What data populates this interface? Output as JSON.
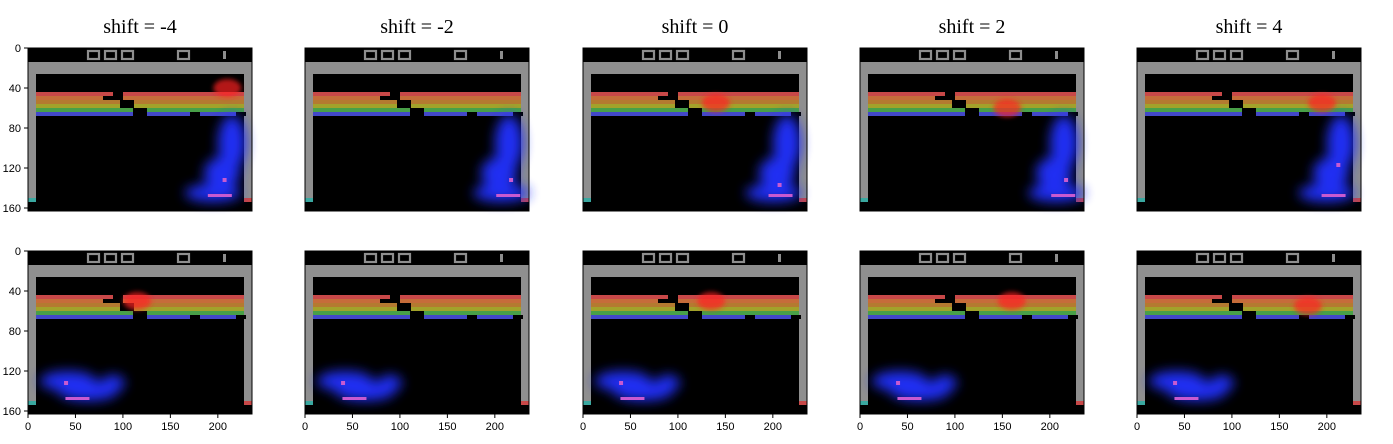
{
  "figure": {
    "columns": [
      {
        "title": "shift = -4"
      },
      {
        "title": "shift = -2"
      },
      {
        "title": "shift = 0"
      },
      {
        "title": "shift = 2"
      },
      {
        "title": "shift = 4"
      }
    ],
    "rows": [
      {
        "scores": [
          "049",
          "049",
          "048",
          "049",
          "053"
        ],
        "lives": "5",
        "player": "1",
        "ball_pos": [
          [
            205,
            130
          ],
          [
            215,
            130
          ],
          [
            205,
            135
          ],
          [
            215,
            130
          ],
          [
            210,
            115
          ]
        ],
        "paddle_x": [
          200,
          212,
          206,
          212,
          205
        ],
        "blob": "right",
        "red_glow": [
          [
            210,
            40
          ],
          [
            0,
            0
          ],
          [
            140,
            55
          ],
          [
            155,
            60
          ],
          [
            195,
            55
          ]
        ]
      },
      {
        "scores": [
          "048",
          "048",
          "048",
          "048",
          "048"
        ],
        "lives": "5",
        "player": "1",
        "ball_pos": [
          [
            38,
            130
          ],
          [
            38,
            130
          ],
          [
            38,
            130
          ],
          [
            38,
            130
          ],
          [
            38,
            130
          ]
        ],
        "paddle_x": [
          50,
          50,
          50,
          50,
          50
        ],
        "blob": "left",
        "red_glow": [
          [
            115,
            50
          ],
          [
            0,
            0
          ],
          [
            135,
            50
          ],
          [
            160,
            50
          ],
          [
            180,
            55
          ]
        ]
      }
    ],
    "x_ticks": [
      "0",
      "50",
      "100",
      "150",
      "200"
    ],
    "y_ticks": [
      "0",
      "40",
      "80",
      "120",
      "160"
    ]
  },
  "colors": {
    "wall": "#8f8f8f",
    "background": "#000000",
    "score": "#8e8e8e",
    "paddle": "#c85ad0",
    "saliency_blue": "#2430ff",
    "saliency_red": "#ff2020",
    "brick_rows": [
      "#c84848",
      "#c66c3a",
      "#b47a30",
      "#a2a22a",
      "#48a048",
      "#4248c8"
    ]
  }
}
